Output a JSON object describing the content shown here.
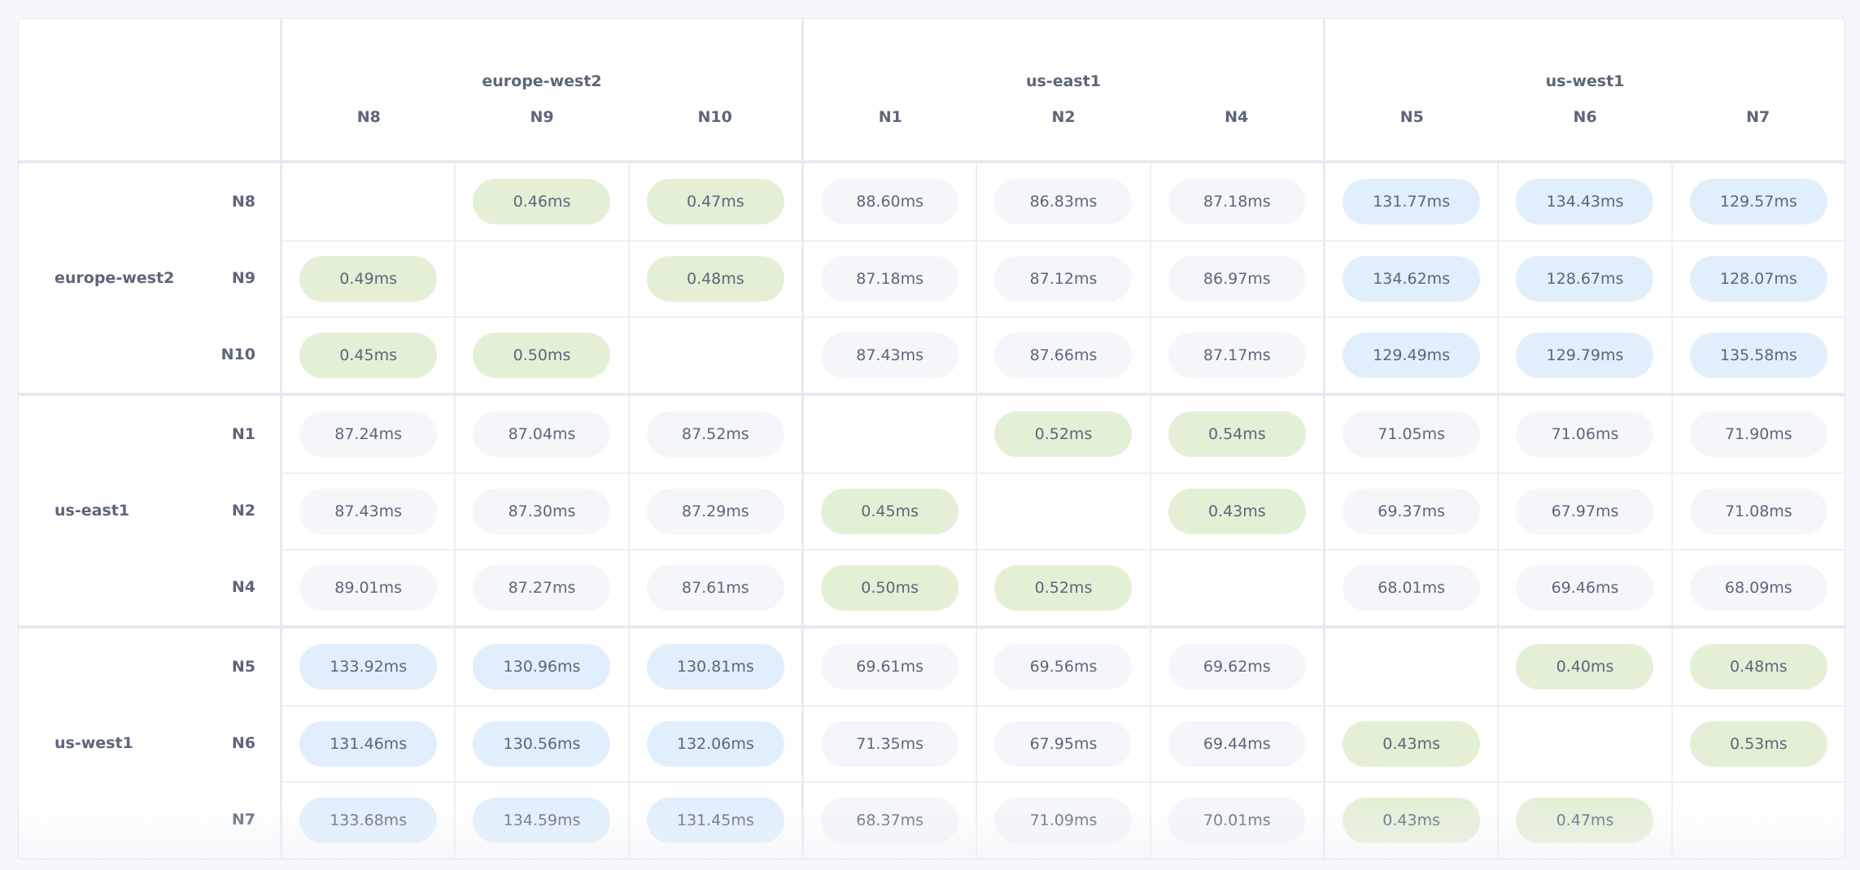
{
  "regions": [
    {
      "name": "europe-west2",
      "nodes": [
        "N8",
        "N9",
        "N10"
      ]
    },
    {
      "name": "us-east1",
      "nodes": [
        "N1",
        "N2",
        "N4"
      ]
    },
    {
      "name": "us-west1",
      "nodes": [
        "N5",
        "N6",
        "N7"
      ]
    }
  ],
  "tone_colors": {
    "local": "#e3f0d6",
    "mid": "#f5f6fa",
    "far": "#e1effd"
  },
  "matrix": [
    [
      "",
      "0.46ms",
      "0.47ms",
      "88.60ms",
      "86.83ms",
      "87.18ms",
      "131.77ms",
      "134.43ms",
      "129.57ms"
    ],
    [
      "0.49ms",
      "",
      "0.48ms",
      "87.18ms",
      "87.12ms",
      "86.97ms",
      "134.62ms",
      "128.67ms",
      "128.07ms"
    ],
    [
      "0.45ms",
      "0.50ms",
      "",
      "87.43ms",
      "87.66ms",
      "87.17ms",
      "129.49ms",
      "129.79ms",
      "135.58ms"
    ],
    [
      "87.24ms",
      "87.04ms",
      "87.52ms",
      "",
      "0.52ms",
      "0.54ms",
      "71.05ms",
      "71.06ms",
      "71.90ms"
    ],
    [
      "87.43ms",
      "87.30ms",
      "87.29ms",
      "0.45ms",
      "",
      "0.43ms",
      "69.37ms",
      "67.97ms",
      "71.08ms"
    ],
    [
      "89.01ms",
      "87.27ms",
      "87.61ms",
      "0.50ms",
      "0.52ms",
      "",
      "68.01ms",
      "69.46ms",
      "68.09ms"
    ],
    [
      "133.92ms",
      "130.96ms",
      "130.81ms",
      "69.61ms",
      "69.56ms",
      "69.62ms",
      "",
      "0.40ms",
      "0.48ms"
    ],
    [
      "131.46ms",
      "130.56ms",
      "132.06ms",
      "71.35ms",
      "67.95ms",
      "69.44ms",
      "0.43ms",
      "",
      "0.53ms"
    ],
    [
      "133.68ms",
      "134.59ms",
      "131.45ms",
      "68.37ms",
      "71.09ms",
      "70.01ms",
      "0.43ms",
      "0.47ms",
      ""
    ]
  ],
  "tones": [
    [
      "",
      "local",
      "local",
      "mid",
      "mid",
      "mid",
      "far",
      "far",
      "far"
    ],
    [
      "local",
      "",
      "local",
      "mid",
      "mid",
      "mid",
      "far",
      "far",
      "far"
    ],
    [
      "local",
      "local",
      "",
      "mid",
      "mid",
      "mid",
      "far",
      "far",
      "far"
    ],
    [
      "mid",
      "mid",
      "mid",
      "",
      "local",
      "local",
      "mid",
      "mid",
      "mid"
    ],
    [
      "mid",
      "mid",
      "mid",
      "local",
      "",
      "local",
      "mid",
      "mid",
      "mid"
    ],
    [
      "mid",
      "mid",
      "mid",
      "local",
      "local",
      "",
      "mid",
      "mid",
      "mid"
    ],
    [
      "far",
      "far",
      "far",
      "mid",
      "mid",
      "mid",
      "",
      "local",
      "local"
    ],
    [
      "far",
      "far",
      "far",
      "mid",
      "mid",
      "mid",
      "local",
      "",
      "local"
    ],
    [
      "far",
      "far",
      "far",
      "mid",
      "mid",
      "mid",
      "local",
      "local",
      ""
    ]
  ]
}
